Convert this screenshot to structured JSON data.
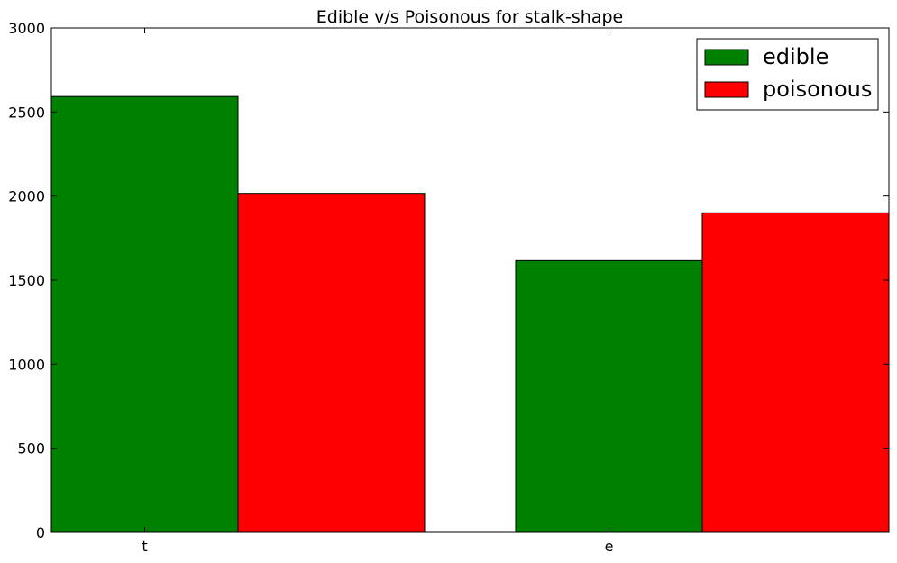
{
  "chart_data": {
    "type": "bar",
    "title": "Edible v/s Poisonous for stalk-shape",
    "xlabel": "",
    "ylabel": "",
    "categories": [
      "t",
      "e"
    ],
    "series": [
      {
        "name": "edible",
        "values": [
          2592,
          1616
        ],
        "color": "#008000"
      },
      {
        "name": "poisonous",
        "values": [
          2016,
          1900
        ],
        "color": "#ff0000"
      }
    ],
    "ylim": [
      0,
      3000
    ],
    "yticks": [
      "0",
      "500",
      "1000",
      "1500",
      "2000",
      "2500",
      "3000"
    ],
    "grid": false,
    "legend_position": "top-right"
  }
}
